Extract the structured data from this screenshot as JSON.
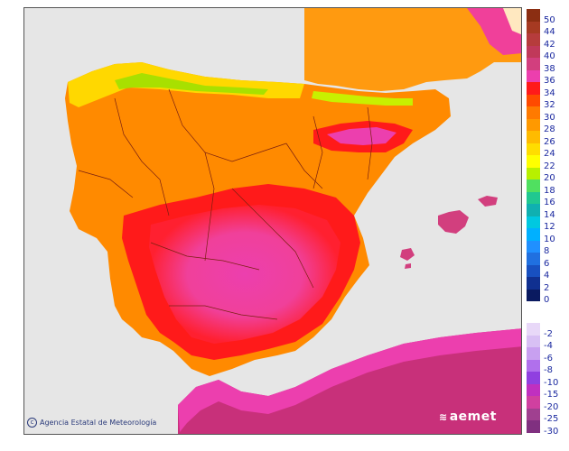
{
  "credit": "Agencia Estatal de Meteorología",
  "credit_icon": "copyright-icon",
  "logo": "aemet",
  "logo_icon": "aemet-logo-icon",
  "legend": {
    "positive": [
      {
        "label": "50",
        "color": "#8b2e12"
      },
      {
        "label": "44",
        "color": "#a63a22"
      },
      {
        "label": "42",
        "color": "#b63c3c"
      },
      {
        "label": "40",
        "color": "#c0395a"
      },
      {
        "label": "38",
        "color": "#d23f7e"
      },
      {
        "label": "36",
        "color": "#ec3fae"
      },
      {
        "label": "34",
        "color": "#ff1a1a"
      },
      {
        "label": "32",
        "color": "#ff4a00"
      },
      {
        "label": "30",
        "color": "#ff7a00"
      },
      {
        "label": "28",
        "color": "#ff9900"
      },
      {
        "label": "26",
        "color": "#ffbb00"
      },
      {
        "label": "24",
        "color": "#ffdd00"
      },
      {
        "label": "22",
        "color": "#ffff00"
      },
      {
        "label": "20",
        "color": "#b8f000"
      },
      {
        "label": "18",
        "color": "#50e060"
      },
      {
        "label": "16",
        "color": "#20c890"
      },
      {
        "label": "14",
        "color": "#10b0b0"
      },
      {
        "label": "12",
        "color": "#00c8e0"
      },
      {
        "label": "10",
        "color": "#00b0ff"
      },
      {
        "label": "8",
        "color": "#2090ff"
      },
      {
        "label": "6",
        "color": "#2070e0"
      },
      {
        "label": "4",
        "color": "#1850c0"
      },
      {
        "label": "2",
        "color": "#103090"
      },
      {
        "label": "0",
        "color": "#0a1a60"
      }
    ],
    "negative": [
      {
        "label": "-2",
        "color": "#e8d8f8"
      },
      {
        "label": "-4",
        "color": "#d8c0f4"
      },
      {
        "label": "-6",
        "color": "#c8a0f0"
      },
      {
        "label": "-8",
        "color": "#b070ec"
      },
      {
        "label": "-10",
        "color": "#9040e0"
      },
      {
        "label": "-15",
        "color": "#c030c0"
      },
      {
        "label": "-20",
        "color": "#d040a0"
      },
      {
        "label": "-25",
        "color": "#a04090"
      },
      {
        "label": "-30",
        "color": "#803080"
      }
    ]
  }
}
